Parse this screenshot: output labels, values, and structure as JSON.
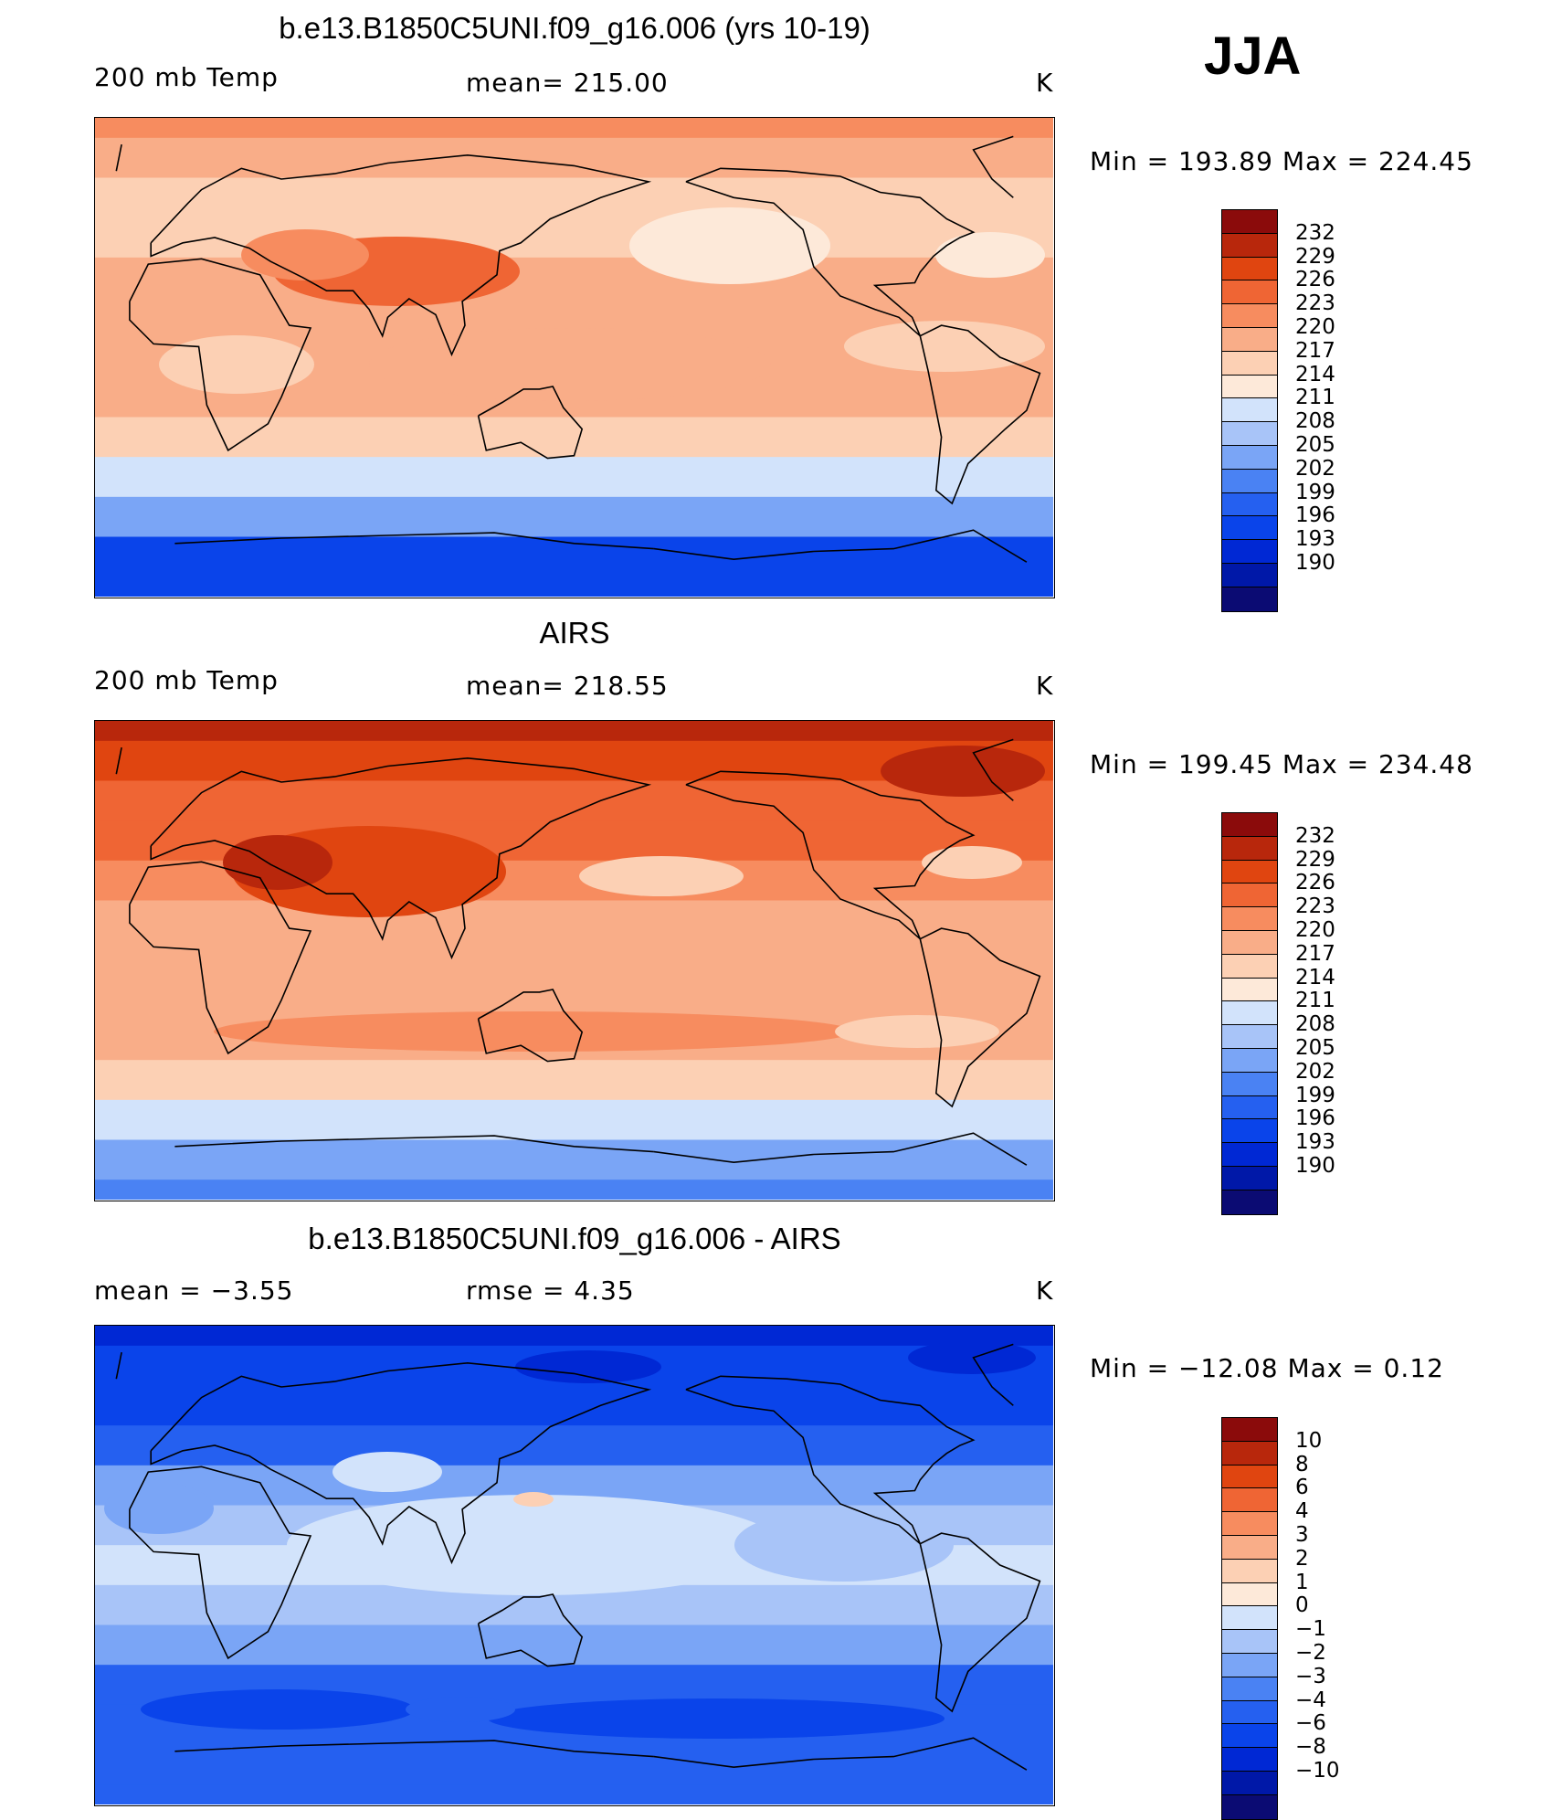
{
  "season": "JJA",
  "colors": {
    "levels": [
      "#0b0b73",
      "#0018a8",
      "#0028d4",
      "#0a44ea",
      "#2560f0",
      "#4a82f3",
      "#7aa5f6",
      "#a8c4f8",
      "#d2e3fb",
      "#fde9d9",
      "#fcd0b4",
      "#f9ad88",
      "#f78c5f",
      "#ef6534",
      "#e04510",
      "#b8270c",
      "#8b0b0b"
    ],
    "land_line": "#000000"
  },
  "panels": [
    {
      "title": "b.e13.B1850C5UNI.f09_g16.006 (yrs 10-19)",
      "left_label": "200 mb Temp",
      "center_label": "mean= 215.00",
      "right_label": "K",
      "stats": "Min = 193.89 Max = 224.45"
    },
    {
      "title": "AIRS",
      "left_label": "200 mb Temp",
      "center_label": "mean= 218.55",
      "right_label": "K",
      "stats": "Min = 199.45 Max = 234.48"
    },
    {
      "title": "b.e13.B1850C5UNI.f09_g16.006 - AIRS",
      "left_label": "mean =   −3.55",
      "center_label": "rmse =    4.35",
      "right_label": "K",
      "stats": "Min = −12.08 Max =    0.12"
    }
  ],
  "chart_data": [
    {
      "type": "heatmap",
      "title": "b.e13.B1850C5UNI.f09_g16.006 (yrs 10-19)",
      "subtitle": "200 mb Temp",
      "units": "K",
      "mean": 215.0,
      "min": 193.89,
      "max": 224.45,
      "colorbar_labels": [
        "232",
        "229",
        "226",
        "223",
        "220",
        "217",
        "214",
        "211",
        "208",
        "205",
        "202",
        "199",
        "196",
        "193",
        "190"
      ],
      "lat_profile": [
        {
          "lat": 90,
          "value": 221
        },
        {
          "lat": 75,
          "value": 219
        },
        {
          "lat": 60,
          "value": 216
        },
        {
          "lat": 45,
          "value": 214
        },
        {
          "lat": 30,
          "value": 218
        },
        {
          "lat": 15,
          "value": 218
        },
        {
          "lat": 0,
          "value": 218
        },
        {
          "lat": -15,
          "value": 218
        },
        {
          "lat": -30,
          "value": 214
        },
        {
          "lat": -45,
          "value": 209
        },
        {
          "lat": -60,
          "value": 202
        },
        {
          "lat": -75,
          "value": 195
        },
        {
          "lat": -90,
          "value": 193
        }
      ]
    },
    {
      "type": "heatmap",
      "title": "AIRS",
      "subtitle": "200 mb Temp",
      "units": "K",
      "mean": 218.55,
      "min": 199.45,
      "max": 234.48,
      "colorbar_labels": [
        "232",
        "229",
        "226",
        "223",
        "220",
        "217",
        "214",
        "211",
        "208",
        "205",
        "202",
        "199",
        "196",
        "193",
        "190"
      ],
      "lat_profile": [
        {
          "lat": 90,
          "value": 230
        },
        {
          "lat": 75,
          "value": 226
        },
        {
          "lat": 60,
          "value": 224
        },
        {
          "lat": 45,
          "value": 223
        },
        {
          "lat": 30,
          "value": 222
        },
        {
          "lat": 15,
          "value": 218
        },
        {
          "lat": 0,
          "value": 218
        },
        {
          "lat": -15,
          "value": 218
        },
        {
          "lat": -30,
          "value": 219
        },
        {
          "lat": -45,
          "value": 215
        },
        {
          "lat": -60,
          "value": 208
        },
        {
          "lat": -75,
          "value": 203
        },
        {
          "lat": -90,
          "value": 200
        }
      ]
    },
    {
      "type": "heatmap",
      "title": "b.e13.B1850C5UNI.f09_g16.006 - AIRS",
      "units": "K",
      "mean": -3.55,
      "rmse": 4.35,
      "min": -12.08,
      "max": 0.12,
      "colorbar_labels": [
        "10",
        "8",
        "6",
        "4",
        "3",
        "2",
        "1",
        "0",
        "−1",
        "−2",
        "−3",
        "−4",
        "−6",
        "−8",
        "−10"
      ],
      "lat_profile": [
        {
          "lat": 90,
          "value": -9
        },
        {
          "lat": 75,
          "value": -7
        },
        {
          "lat": 60,
          "value": -7
        },
        {
          "lat": 45,
          "value": -5
        },
        {
          "lat": 30,
          "value": -3
        },
        {
          "lat": 15,
          "value": -1.5
        },
        {
          "lat": 0,
          "value": -1
        },
        {
          "lat": -15,
          "value": -1.5
        },
        {
          "lat": -30,
          "value": -3
        },
        {
          "lat": -45,
          "value": -5
        },
        {
          "lat": -60,
          "value": -5
        },
        {
          "lat": -75,
          "value": -5
        },
        {
          "lat": -90,
          "value": -6
        }
      ]
    }
  ]
}
